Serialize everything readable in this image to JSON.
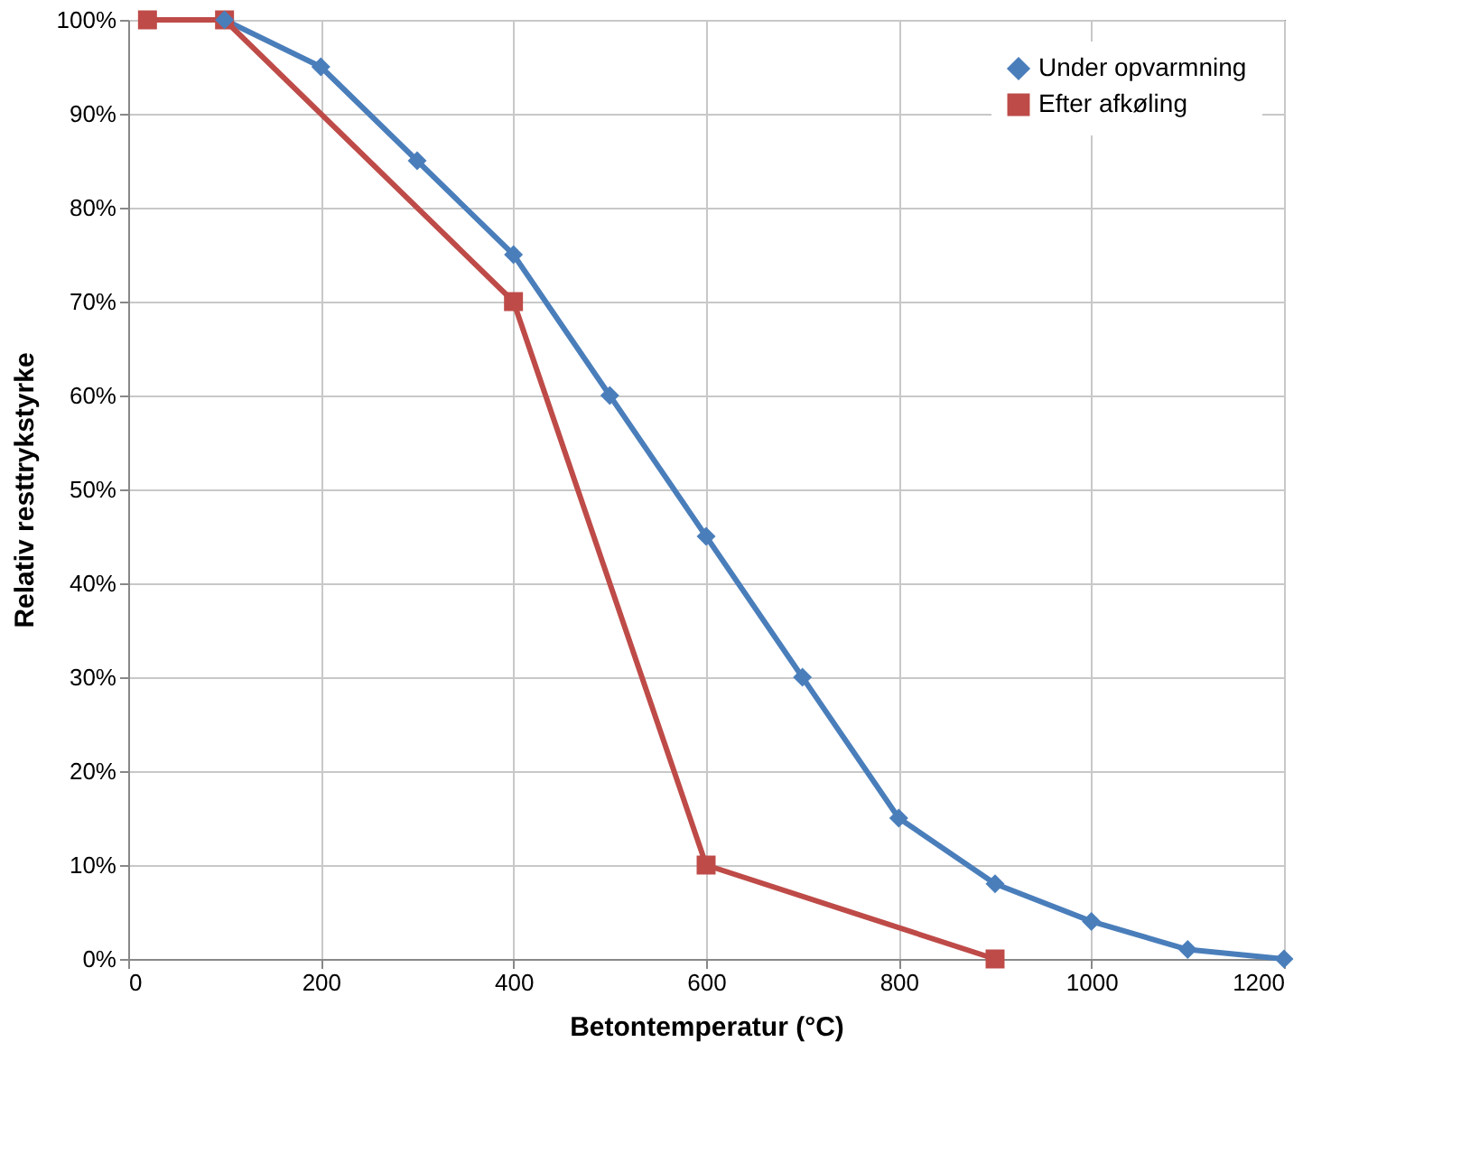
{
  "chart_data": {
    "type": "line",
    "xlabel": "Betontemperatur (°C)",
    "ylabel": "Relativ resttrykstyrke",
    "xlim": [
      0,
      1200
    ],
    "xticks": [
      0,
      200,
      400,
      600,
      800,
      1000,
      1200
    ],
    "ylim": [
      0,
      100
    ],
    "yticks": [
      {
        "value": 0,
        "label": "0%"
      },
      {
        "value": 10,
        "label": "10%"
      },
      {
        "value": 20,
        "label": "20%"
      },
      {
        "value": 30,
        "label": "30%"
      },
      {
        "value": 40,
        "label": "40%"
      },
      {
        "value": 50,
        "label": "50%"
      },
      {
        "value": 60,
        "label": "60%"
      },
      {
        "value": 70,
        "label": "70%"
      },
      {
        "value": 80,
        "label": "80%"
      },
      {
        "value": 90,
        "label": "90%"
      },
      {
        "value": 100,
        "label": "100%"
      }
    ],
    "grid": true,
    "legend": "top right",
    "line_style": "solid",
    "series": [
      {
        "name": "Under opvarmning",
        "color": "#4a7ebb",
        "marker": "diamond",
        "x": [
          100,
          200,
          300,
          400,
          500,
          600,
          700,
          800,
          900,
          1000,
          1100,
          1200
        ],
        "values": [
          100,
          95,
          85,
          75,
          60,
          45,
          30,
          15,
          8,
          4,
          1,
          0
        ]
      },
      {
        "name": "Efter afkøling",
        "color": "#be4b48",
        "marker": "square",
        "x": [
          20,
          100,
          400,
          600,
          900
        ],
        "values": [
          100,
          100,
          70,
          10,
          0
        ]
      }
    ]
  }
}
